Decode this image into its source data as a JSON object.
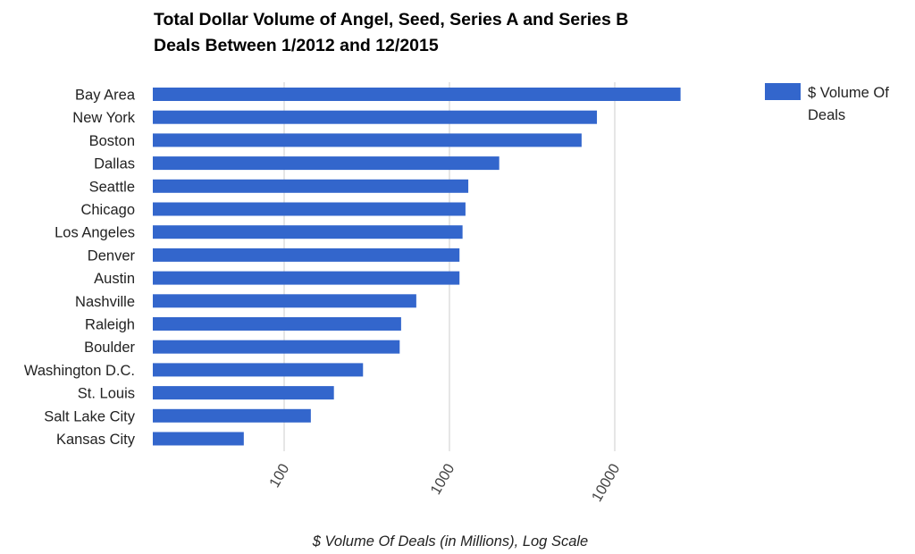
{
  "chart_data": {
    "type": "bar",
    "orientation": "horizontal",
    "title_lines": [
      "Total Dollar Volume of Angel, Seed, Series A and Series B",
      "Deals Between 1/2012 and 12/2015"
    ],
    "xlabel": "$ Volume Of Deals (in Millions), Log Scale",
    "ylabel": "",
    "x_scale": "log",
    "xlim": [
      15,
      30000
    ],
    "x_ticks": [
      "100",
      "1000",
      "10000"
    ],
    "x_tick_values": [
      100,
      1000,
      10000
    ],
    "grid": "vertical",
    "legend_position": "top-right",
    "categories": [
      "Bay Area",
      "New York",
      "Boston",
      "Dallas",
      "Seattle",
      "Chicago",
      "Los Angeles",
      "Denver",
      "Austin",
      "Nashville",
      "Raleigh",
      "Boulder",
      "Washington D.C.",
      "St. Louis",
      "Salt Lake City",
      "Kansas City"
    ],
    "series": [
      {
        "name": "$ Volume Of Deals",
        "name_lines": [
          "$ Volume Of",
          "Deals"
        ],
        "color": "#3366cc",
        "values": [
          25000,
          7800,
          6300,
          2000,
          1300,
          1250,
          1200,
          1150,
          1150,
          630,
          510,
          500,
          300,
          200,
          145,
          57
        ]
      }
    ]
  }
}
